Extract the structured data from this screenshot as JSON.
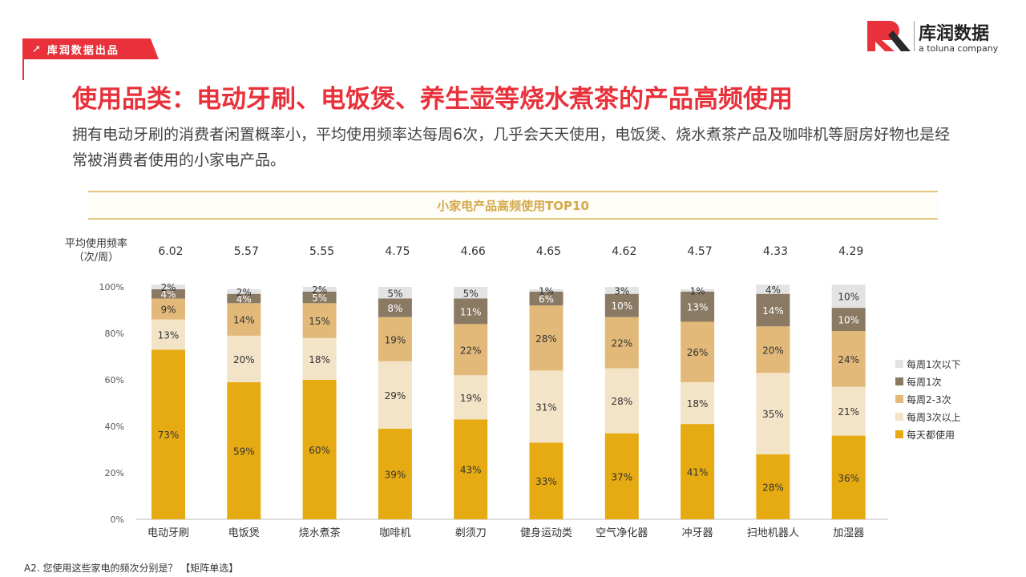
{
  "header": {
    "tag_label": "库润数据出品",
    "logo_text": "库润数据",
    "logo_sub": "a toluna company",
    "logo_mark": "R"
  },
  "title": "使用品类：电动牙刷、电饭煲、养生壶等烧水煮茶的产品高频使用",
  "subtitle": "拥有电动牙刷的消费者闲置概率小，平均使用频率达每周6次，几乎会天天使用，电饭煲、烧水煮茶产品及咖啡机等厨房好物也是经常被消费者使用的小家电产品。",
  "chart_title": "小家电产品高频使用TOP10",
  "freq_label_line1": "平均使用频率",
  "freq_label_line2": "（次/周）",
  "footnote": "A2. 您使用这些家电的频次分别是？ 【矩阵单选】",
  "chart_data": {
    "type": "bar",
    "stacked": true,
    "title": "小家电产品高频使用TOP10",
    "categories": [
      "电动牙刷",
      "电饭煲",
      "烧水煮茶",
      "咖啡机",
      "剃须刀",
      "健身运动类",
      "空气净化器",
      "冲牙器",
      "扫地机器人",
      "加湿器"
    ],
    "avg_frequency": [
      "6.02",
      "5.57",
      "5.55",
      "4.75",
      "4.66",
      "4.65",
      "4.62",
      "4.57",
      "4.33",
      "4.29"
    ],
    "yticks": [
      "0%",
      "20%",
      "40%",
      "60%",
      "80%",
      "100%"
    ],
    "ylim": [
      0,
      100
    ],
    "legend_position": "right",
    "series": [
      {
        "name": "每天都使用",
        "color": "#e6ab12",
        "values": [
          73,
          59,
          60,
          39,
          43,
          33,
          37,
          41,
          28,
          36
        ]
      },
      {
        "name": "每周3次以上",
        "color": "#f3e3c7",
        "values": [
          13,
          20,
          18,
          29,
          19,
          31,
          28,
          18,
          35,
          21
        ]
      },
      {
        "name": "每周2-3次",
        "color": "#e2b978",
        "values": [
          9,
          14,
          15,
          19,
          22,
          28,
          22,
          26,
          20,
          24
        ]
      },
      {
        "name": "每周1次",
        "color": "#8a7a64",
        "values": [
          4,
          4,
          5,
          8,
          11,
          6,
          10,
          13,
          14,
          10
        ]
      },
      {
        "name": "每周1次以下",
        "color": "#e3e3e3",
        "values": [
          2,
          2,
          2,
          5,
          5,
          1,
          3,
          1,
          4,
          10
        ]
      }
    ]
  }
}
